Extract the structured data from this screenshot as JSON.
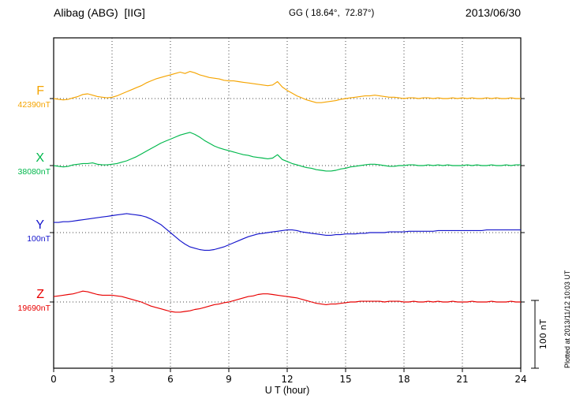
{
  "header": {
    "station": "Alibag (ABG)  [IIG]",
    "coords": "GG ( 18.64°,  72.87°)",
    "date": "2013/06/30"
  },
  "footer": {
    "xlabel": "U T (hour)"
  },
  "side_note": "Plotted at 2013/11/12 10:03 UT",
  "scale_bar": {
    "label": "100 nT",
    "nT": 100
  },
  "chart_data": {
    "type": "line",
    "title": "Alibag (ABG) [IIG] magnetogram 2013/06/30",
    "xlabel": "U T (hour)",
    "x_range": [
      0,
      24
    ],
    "x_ticks": [
      0,
      3,
      6,
      9,
      12,
      15,
      18,
      21,
      24
    ],
    "x_step_hours": 0.25,
    "grid": "dotted-vertical-at-3h-and-dotted-baselines",
    "series": [
      {
        "name": "F",
        "baseline_label": "42390nT",
        "baseline_nT": 42390,
        "color": "#F5A400",
        "offsets_nT": [
          0,
          -1,
          -2,
          -1,
          1,
          3,
          6,
          7,
          5,
          3,
          2,
          1,
          2,
          4,
          7,
          10,
          13,
          16,
          19,
          23,
          26,
          29,
          31,
          33,
          35,
          37,
          39,
          37,
          40,
          38,
          35,
          33,
          31,
          30,
          29,
          27,
          26,
          26,
          25,
          24,
          23,
          22,
          21,
          20,
          19,
          20,
          25,
          17,
          12,
          8,
          4,
          1,
          -2,
          -4,
          -6,
          -6,
          -5,
          -4,
          -3,
          -1,
          0,
          1,
          2,
          3,
          4,
          4,
          5,
          4,
          3,
          2,
          2,
          1,
          0,
          1,
          1,
          0,
          1,
          1,
          0,
          1,
          0,
          0,
          1,
          0,
          1,
          0,
          1,
          0,
          0,
          1,
          0,
          1,
          0,
          0,
          1,
          0,
          0
        ]
      },
      {
        "name": "X",
        "baseline_label": "38080nT",
        "baseline_nT": 38080,
        "color": "#00B84C",
        "offsets_nT": [
          0,
          -1,
          -2,
          -1,
          1,
          2,
          3,
          3,
          4,
          2,
          1,
          1,
          2,
          3,
          5,
          7,
          10,
          13,
          17,
          21,
          25,
          29,
          33,
          36,
          39,
          42,
          45,
          47,
          49,
          46,
          42,
          37,
          33,
          29,
          26,
          24,
          22,
          20,
          18,
          16,
          15,
          13,
          12,
          11,
          10,
          11,
          16,
          9,
          6,
          3,
          1,
          -1,
          -3,
          -4,
          -6,
          -7,
          -8,
          -8,
          -7,
          -5,
          -4,
          -2,
          -1,
          0,
          1,
          2,
          2,
          1,
          0,
          -1,
          -1,
          0,
          0,
          1,
          1,
          0,
          0,
          1,
          0,
          1,
          0,
          1,
          0,
          0,
          0,
          1,
          0,
          1,
          0,
          0,
          1,
          0,
          0,
          1,
          0,
          1,
          1
        ]
      },
      {
        "name": "Y",
        "baseline_label": "100nT",
        "baseline_nT": 100,
        "color": "#1414CC",
        "offsets_nT": [
          15,
          15,
          16,
          16,
          17,
          18,
          19,
          20,
          21,
          22,
          23,
          24,
          25,
          26,
          27,
          28,
          27,
          26,
          25,
          23,
          20,
          16,
          12,
          6,
          0,
          -6,
          -12,
          -17,
          -21,
          -23,
          -25,
          -26,
          -26,
          -25,
          -23,
          -21,
          -18,
          -15,
          -12,
          -9,
          -6,
          -4,
          -2,
          -1,
          0,
          1,
          2,
          3,
          4,
          4,
          3,
          1,
          0,
          -1,
          -2,
          -3,
          -4,
          -4,
          -3,
          -3,
          -2,
          -2,
          -2,
          -1,
          -1,
          0,
          0,
          0,
          0,
          1,
          1,
          1,
          1,
          2,
          2,
          2,
          2,
          2,
          2,
          3,
          3,
          3,
          3,
          3,
          3,
          3,
          3,
          3,
          3,
          4,
          4,
          4,
          4,
          4,
          4,
          4,
          4
        ]
      },
      {
        "name": "Z",
        "baseline_label": "19690nT",
        "baseline_nT": 19690,
        "color": "#E80000",
        "offsets_nT": [
          8,
          9,
          10,
          11,
          12,
          14,
          16,
          15,
          13,
          11,
          10,
          10,
          10,
          9,
          8,
          6,
          4,
          2,
          0,
          -3,
          -6,
          -8,
          -10,
          -12,
          -14,
          -15,
          -15,
          -14,
          -13,
          -11,
          -10,
          -8,
          -6,
          -4,
          -3,
          -1,
          0,
          2,
          4,
          6,
          8,
          9,
          11,
          12,
          12,
          11,
          10,
          9,
          8,
          7,
          6,
          4,
          2,
          0,
          -2,
          -3,
          -4,
          -3,
          -3,
          -2,
          -1,
          0,
          0,
          1,
          1,
          1,
          1,
          1,
          0,
          1,
          1,
          1,
          0,
          0,
          1,
          0,
          0,
          1,
          0,
          1,
          0,
          0,
          1,
          0,
          0,
          0,
          1,
          0,
          0,
          0,
          1,
          0,
          0,
          0,
          1,
          0,
          0
        ]
      }
    ]
  }
}
